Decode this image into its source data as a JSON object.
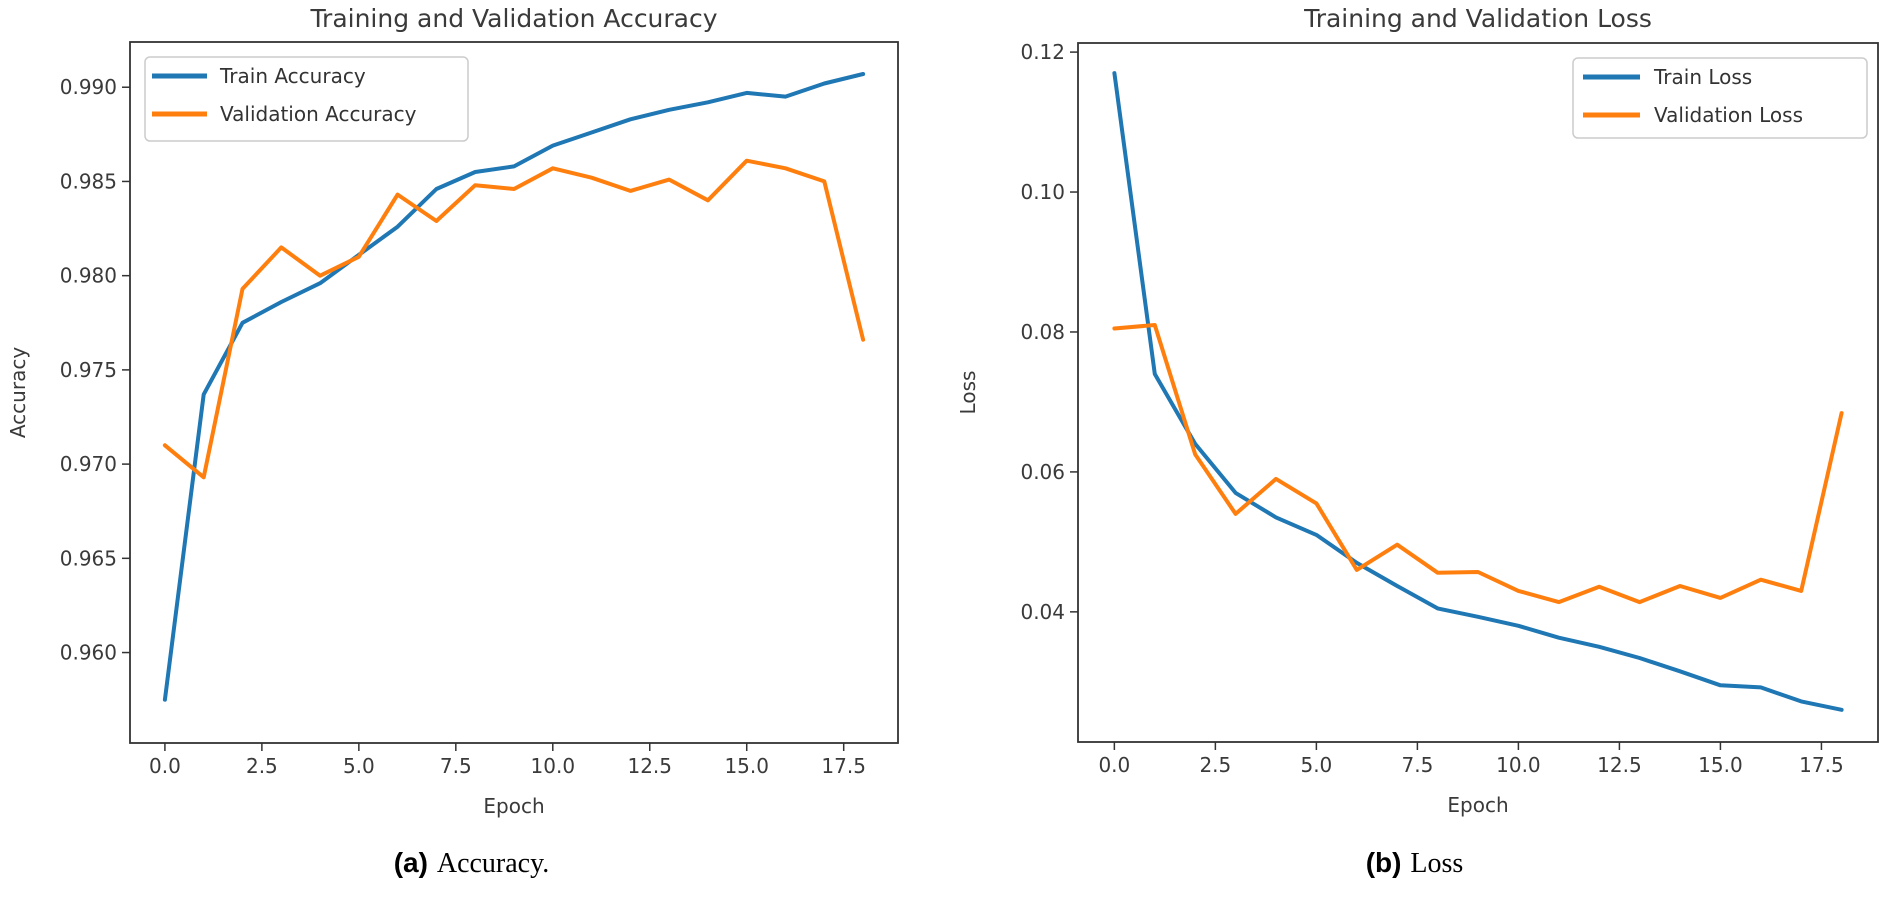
{
  "captions": {
    "a": {
      "label": "(a)",
      "text": "Accuracy."
    },
    "b": {
      "label": "(b)",
      "text": "Loss"
    }
  },
  "colors": {
    "train": "#1f77b4",
    "validation": "#ff7f0e",
    "axis": "#333333",
    "label_text": "#3a3a3a",
    "legend_border": "#cccccc"
  },
  "chart_data": [
    {
      "type": "line",
      "title": "Training and Validation Accuracy",
      "xlabel": "Epoch",
      "ylabel": "Accuracy",
      "grid": false,
      "legend_position": "upper-left",
      "x": [
        0,
        1,
        2,
        3,
        4,
        5,
        6,
        7,
        8,
        9,
        10,
        11,
        12,
        13,
        14,
        15,
        16,
        17,
        18
      ],
      "series": [
        {
          "name": "Train Accuracy",
          "color": "#1f77b4",
          "values": [
            0.9575,
            0.9737,
            0.9775,
            0.9786,
            0.9796,
            0.9811,
            0.9826,
            0.9846,
            0.9855,
            0.9858,
            0.9869,
            0.9876,
            0.9883,
            0.9888,
            0.9892,
            0.9897,
            0.9895,
            0.9902,
            0.9907
          ]
        },
        {
          "name": "Validation Accuracy",
          "color": "#ff7f0e",
          "values": [
            0.971,
            0.9693,
            0.9793,
            0.9815,
            0.98,
            0.981,
            0.9843,
            0.9829,
            0.9848,
            0.9846,
            0.9857,
            0.9852,
            0.9845,
            0.9851,
            0.984,
            0.9861,
            0.9857,
            0.985,
            0.9766
          ]
        }
      ],
      "xlim": [
        -0.9,
        18.9
      ],
      "ylim": [
        0.9552,
        0.9924
      ],
      "xticks": {
        "values": [
          0,
          2.5,
          5,
          7.5,
          10,
          12.5,
          15,
          17.5
        ],
        "labels": [
          "0.0",
          "2.5",
          "5.0",
          "7.5",
          "10.0",
          "12.5",
          "15.0",
          "17.5"
        ]
      },
      "yticks": {
        "values": [
          0.96,
          0.965,
          0.97,
          0.975,
          0.98,
          0.985,
          0.99
        ],
        "labels": [
          "0.960",
          "0.965",
          "0.970",
          "0.975",
          "0.980",
          "0.985",
          "0.990"
        ]
      }
    },
    {
      "type": "line",
      "title": "Training and Validation Loss",
      "xlabel": "Epoch",
      "ylabel": "Loss",
      "grid": false,
      "legend_position": "upper-right",
      "x": [
        0,
        1,
        2,
        3,
        4,
        5,
        6,
        7,
        8,
        9,
        10,
        11,
        12,
        13,
        14,
        15,
        16,
        17,
        18
      ],
      "series": [
        {
          "name": "Train Loss",
          "color": "#1f77b4",
          "values": [
            0.117,
            0.074,
            0.064,
            0.057,
            0.0535,
            0.051,
            0.047,
            0.0437,
            0.0405,
            0.0393,
            0.038,
            0.0363,
            0.035,
            0.0334,
            0.0315,
            0.0295,
            0.0292,
            0.0272,
            0.026
          ]
        },
        {
          "name": "Validation Loss",
          "color": "#ff7f0e",
          "values": [
            0.0805,
            0.081,
            0.0625,
            0.054,
            0.059,
            0.0555,
            0.046,
            0.0496,
            0.0456,
            0.0457,
            0.043,
            0.0414,
            0.0436,
            0.0414,
            0.0437,
            0.042,
            0.0446,
            0.043,
            0.0684
          ]
        }
      ],
      "xlim": [
        -0.9,
        18.9
      ],
      "ylim": [
        0.0214,
        0.1213
      ],
      "xticks": {
        "values": [
          0,
          2.5,
          5,
          7.5,
          10,
          12.5,
          15,
          17.5
        ],
        "labels": [
          "0.0",
          "2.5",
          "5.0",
          "7.5",
          "10.0",
          "12.5",
          "15.0",
          "17.5"
        ]
      },
      "yticks": {
        "values": [
          0.04,
          0.06,
          0.08,
          0.1,
          0.12
        ],
        "labels": [
          "0.04",
          "0.06",
          "0.08",
          "0.10",
          "0.12"
        ]
      }
    }
  ]
}
